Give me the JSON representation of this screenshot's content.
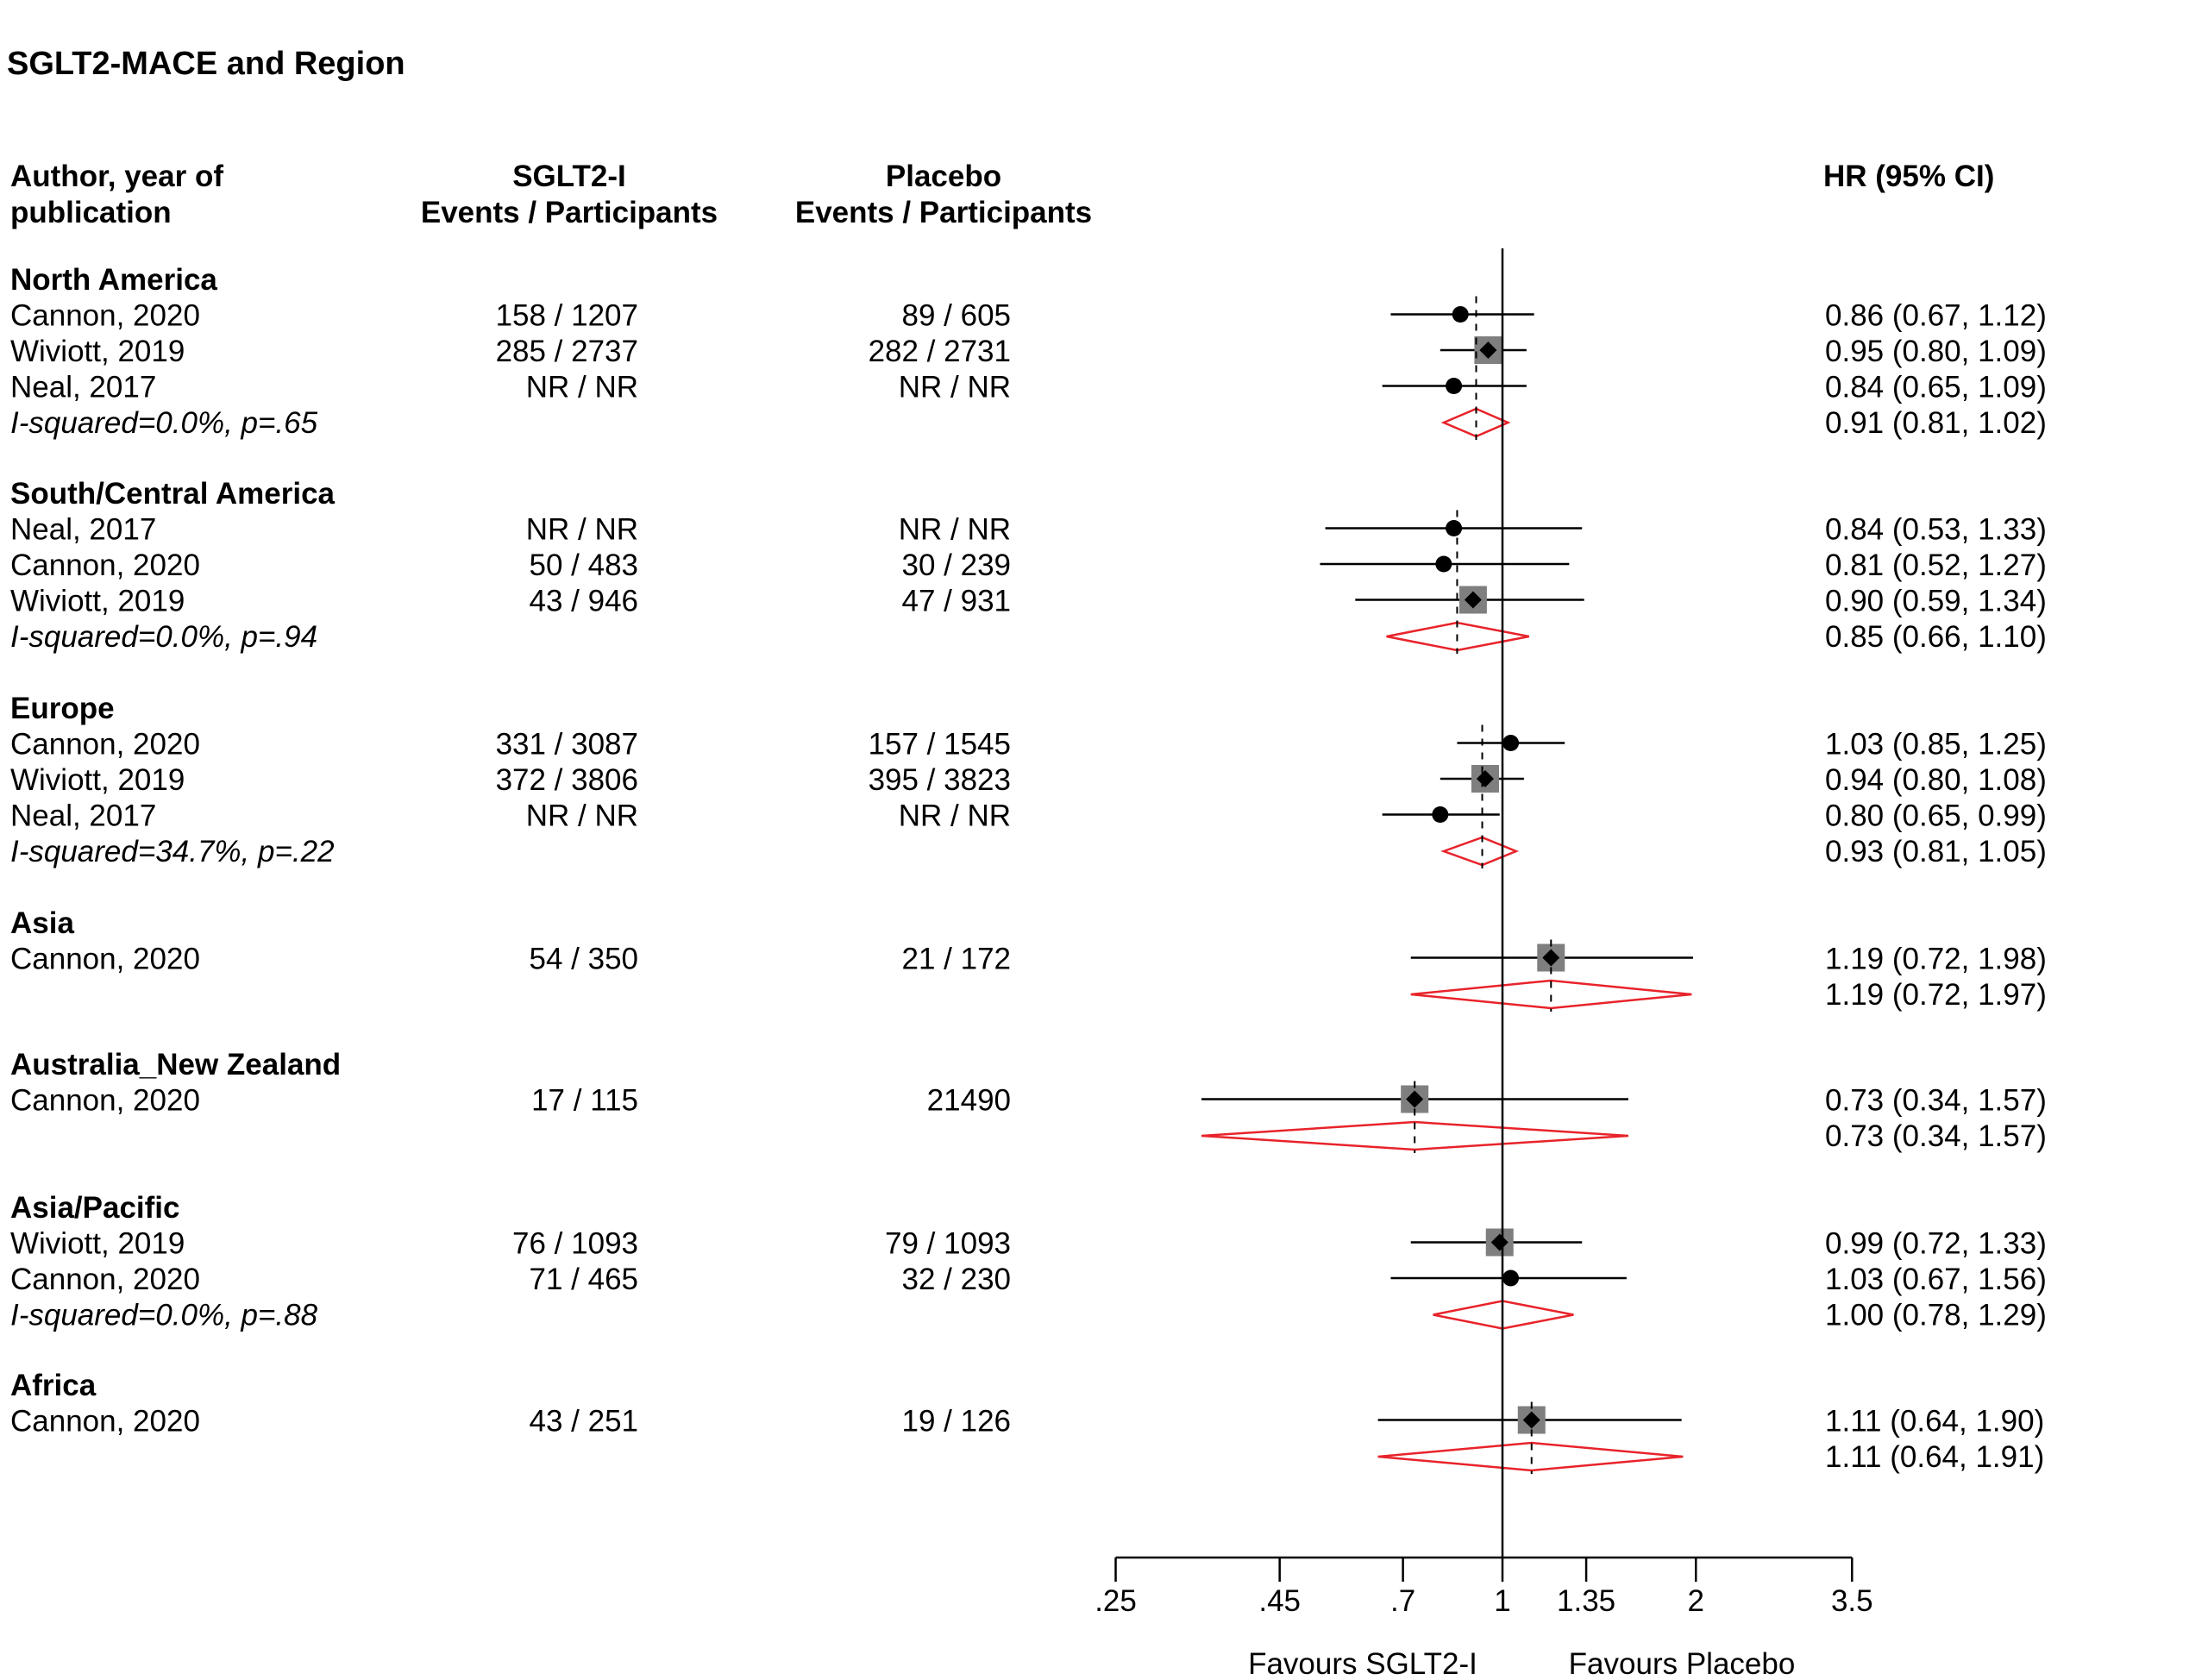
{
  "chart_data": {
    "type": "forest",
    "title": "SGLT2-MACE  and Region",
    "headers": {
      "study": [
        "Author, year of",
        "publication"
      ],
      "treatment": [
        "SGLT2-I",
        "Events  / Participants"
      ],
      "control": [
        "Placebo",
        "Events  / Participants"
      ],
      "effect": "HR (95% CI)"
    },
    "axis": {
      "scale": "log",
      "ticks": [
        0.25,
        0.45,
        0.7,
        1,
        1.35,
        2,
        3.5
      ],
      "tick_labels": [
        ".25",
        ".45",
        ".7",
        "1",
        "1.35",
        "2",
        "3.5"
      ],
      "null_value": 1,
      "favours_left": "Favours SGLT2-I",
      "favours_right": "Favours Placebo"
    },
    "groups": [
      {
        "name": "North America",
        "studies": [
          {
            "label": "Cannon, 2020",
            "treat": "158 / 1207",
            "ctrl": "89 / 605",
            "hr": 0.86,
            "lo": 0.67,
            "hi": 1.12,
            "ci_text": "0.86 (0.67, 1.12)",
            "marker": "circle"
          },
          {
            "label": "Wiviott,  2019",
            "treat": "285 / 2737",
            "ctrl": "282 / 2731",
            "hr": 0.95,
            "lo": 0.8,
            "hi": 1.09,
            "ci_text": "0.95 (0.80, 1.09)",
            "marker": "square"
          },
          {
            "label": "Neal, 2017",
            "treat": "NR / NR",
            "ctrl": "NR / NR",
            "hr": 0.84,
            "lo": 0.65,
            "hi": 1.09,
            "ci_text": "0.84 (0.65, 1.09)",
            "marker": "circle"
          }
        ],
        "summary": {
          "label": "I-squared=0.0%, p=.65",
          "hr": 0.91,
          "lo": 0.81,
          "hi": 1.02,
          "ci_text": "0.91 (0.81, 1.02)"
        }
      },
      {
        "name": "South/Central  America",
        "studies": [
          {
            "label": "Neal, 2017",
            "treat": "NR / NR",
            "ctrl": "NR / NR",
            "hr": 0.84,
            "lo": 0.53,
            "hi": 1.33,
            "ci_text": "0.84 (0.53, 1.33)",
            "marker": "circle"
          },
          {
            "label": "Cannon, 2020",
            "treat": "50 / 483",
            "ctrl": "30 / 239",
            "hr": 0.81,
            "lo": 0.52,
            "hi": 1.27,
            "ci_text": "0.81 (0.52, 1.27)",
            "marker": "circle"
          },
          {
            "label": "Wiviott,  2019",
            "treat": "43 / 946",
            "ctrl": "47 / 931",
            "hr": 0.9,
            "lo": 0.59,
            "hi": 1.34,
            "ci_text": "0.90 (0.59, 1.34)",
            "marker": "square"
          }
        ],
        "summary": {
          "label": "I-squared=0.0%, p=.94",
          "hr": 0.85,
          "lo": 0.66,
          "hi": 1.1,
          "ci_text": "0.85 (0.66, 1.10)"
        }
      },
      {
        "name": "Europe",
        "studies": [
          {
            "label": "Cannon, 2020",
            "treat": "331 / 3087",
            "ctrl": "157 / 1545",
            "hr": 1.03,
            "lo": 0.85,
            "hi": 1.25,
            "ci_text": "1.03 (0.85, 1.25)",
            "marker": "circle"
          },
          {
            "label": "Wiviott,  2019",
            "treat": "372 / 3806",
            "ctrl": "395 / 3823",
            "hr": 0.94,
            "lo": 0.8,
            "hi": 1.08,
            "ci_text": "0.94 (0.80, 1.08)",
            "marker": "square"
          },
          {
            "label": "Neal, 2017",
            "treat": "NR / NR",
            "ctrl": "NR / NR",
            "hr": 0.8,
            "lo": 0.65,
            "hi": 0.99,
            "ci_text": "0.80 (0.65, 0.99)",
            "marker": "circle"
          }
        ],
        "summary": {
          "label": "I-squared=34.7%, p=.22",
          "hr": 0.93,
          "lo": 0.81,
          "hi": 1.05,
          "ci_text": "0.93 (0.81, 1.05)"
        }
      },
      {
        "name": "Asia",
        "studies": [
          {
            "label": "Cannon, 2020",
            "treat": "54 / 350",
            "ctrl": "21 / 172",
            "hr": 1.19,
            "lo": 0.72,
            "hi": 1.98,
            "ci_text": "1.19 (0.72, 1.98)",
            "marker": "square"
          }
        ],
        "summary": {
          "label": "",
          "hr": 1.19,
          "lo": 0.72,
          "hi": 1.97,
          "ci_text": "1.19 (0.72, 1.97)"
        }
      },
      {
        "name": "Australia_New Zealand",
        "studies": [
          {
            "label": "Cannon, 2020",
            "treat": "17 / 115",
            "ctrl": "21490",
            "hr": 0.73,
            "lo": 0.34,
            "hi": 1.57,
            "ci_text": "0.73 (0.34, 1.57)",
            "marker": "square"
          }
        ],
        "summary": {
          "label": "",
          "hr": 0.73,
          "lo": 0.34,
          "hi": 1.57,
          "ci_text": "0.73 (0.34, 1.57)"
        }
      },
      {
        "name": "Asia/Pacific",
        "studies": [
          {
            "label": "Wiviott,  2019",
            "treat": "76 / 1093",
            "ctrl": "79 / 1093",
            "hr": 0.99,
            "lo": 0.72,
            "hi": 1.33,
            "ci_text": "0.99 (0.72, 1.33)",
            "marker": "square"
          },
          {
            "label": "Cannon, 2020",
            "treat": "71 / 465",
            "ctrl": "32 / 230",
            "hr": 1.03,
            "lo": 0.67,
            "hi": 1.56,
            "ci_text": "1.03 (0.67, 1.56)",
            "marker": "circle"
          }
        ],
        "summary": {
          "label": "I-squared=0.0%, p=.88",
          "hr": 1.0,
          "lo": 0.78,
          "hi": 1.29,
          "ci_text": "1.00 (0.78, 1.29)"
        }
      },
      {
        "name": "Africa",
        "studies": [
          {
            "label": "Cannon, 2020",
            "treat": "43 / 251",
            "ctrl": "19 / 126",
            "hr": 1.11,
            "lo": 0.64,
            "hi": 1.9,
            "ci_text": "1.11 (0.64, 1.90)",
            "marker": "square"
          }
        ],
        "summary": {
          "label": "",
          "hr": 1.11,
          "lo": 0.64,
          "hi": 1.91,
          "ci_text": "1.11 (0.64, 1.91)"
        }
      }
    ],
    "colors": {
      "text": "#000000",
      "ci_line": "#000000",
      "marker": "#000000",
      "weight_box": "#7f7f7f",
      "summary_diamond": "#e8232a",
      "null_line": "#000000"
    }
  }
}
